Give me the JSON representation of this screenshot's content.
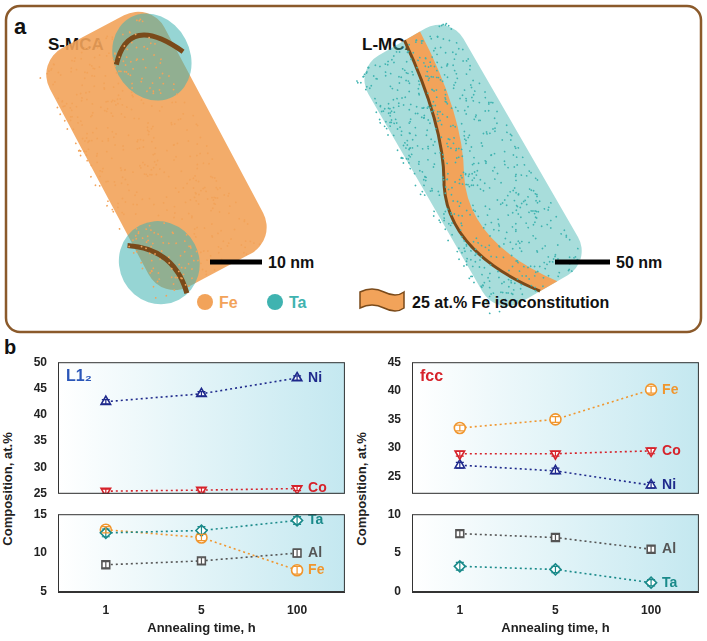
{
  "panel_a": {
    "panel_label": "a",
    "samples": [
      "S-MCA",
      "L-MCA"
    ],
    "scale_bars": [
      "10 nm",
      "50 nm"
    ],
    "key_items": [
      {
        "name": "Fe",
        "color": "#f2a35a"
      },
      {
        "name": "Ta",
        "color": "#3fb3b0"
      }
    ],
    "isosurface_label": "25 at.% Fe isoconstitution"
  },
  "panel_b": {
    "panel_label": "b"
  },
  "chart_data": [
    {
      "type": "line",
      "title": "L1₂",
      "categories": [
        "1",
        "5",
        "100"
      ],
      "ylim": [
        25,
        50
      ],
      "yticks": [
        25,
        30,
        35,
        40,
        45,
        50
      ],
      "tick_labels": "y",
      "grid": false,
      "line_style": "dotted",
      "series": [
        {
          "name": "Ni",
          "color": "#1f2a8c",
          "marker": "triangle",
          "values": [
            42.5,
            44.0,
            47.0
          ],
          "errors": [
            0.4,
            0.4,
            0.4
          ]
        },
        {
          "name": "Co",
          "color": "#d6232b",
          "marker": "triangle_down",
          "values": [
            25.5,
            25.7,
            26.0
          ],
          "errors": [
            0.4,
            0.4,
            0.4
          ]
        }
      ]
    },
    {
      "type": "line",
      "categories": [
        "1",
        "5",
        "100"
      ],
      "ylim": [
        5,
        15
      ],
      "yticks": [
        5,
        10,
        15
      ],
      "xlabel": "Annealing time, h",
      "ylabel": "Composition, at.%",
      "grid": false,
      "line_style": "dotted",
      "series": [
        {
          "name": "Ta",
          "color": "#1a8a8a",
          "marker": "diamond",
          "values": [
            12.6,
            12.9,
            14.2
          ],
          "errors": [
            0.5,
            0.5,
            0.5
          ]
        },
        {
          "name": "Al",
          "color": "#555555",
          "marker": "square",
          "values": [
            8.5,
            9.0,
            10.0
          ],
          "errors": [
            0.4,
            0.4,
            0.5
          ]
        },
        {
          "name": "Fe",
          "color": "#f0962e",
          "marker": "circle",
          "values": [
            13.0,
            12.0,
            7.8
          ],
          "errors": [
            0.4,
            0.4,
            0.5
          ]
        }
      ]
    },
    {
      "type": "line",
      "title": "fcc",
      "categories": [
        "1",
        "5",
        "100"
      ],
      "ylim": [
        22,
        45
      ],
      "yticks": [
        25,
        30,
        35,
        40,
        45
      ],
      "tick_labels": "y",
      "grid": false,
      "line_style": "dotted",
      "series": [
        {
          "name": "Fe",
          "color": "#f0962e",
          "marker": "circle",
          "values": [
            33.5,
            35.0,
            40.2
          ],
          "errors": [
            0.5,
            0.5,
            0.6
          ]
        },
        {
          "name": "Co",
          "color": "#d6232b",
          "marker": "triangle_down",
          "values": [
            29.0,
            29.0,
            29.5
          ],
          "errors": [
            0.4,
            0.4,
            0.5
          ]
        },
        {
          "name": "Ni",
          "color": "#1f2a8c",
          "marker": "triangle",
          "values": [
            27.0,
            26.0,
            23.5
          ],
          "errors": [
            0.5,
            0.5,
            0.5
          ]
        }
      ]
    },
    {
      "type": "line",
      "categories": [
        "1",
        "5",
        "100"
      ],
      "ylim": [
        0,
        10
      ],
      "yticks": [
        0,
        5,
        10
      ],
      "xlabel": "Annealing time, h",
      "ylabel": "Composition, at.%",
      "grid": false,
      "line_style": "dotted",
      "series": [
        {
          "name": "Al",
          "color": "#555555",
          "marker": "square",
          "values": [
            7.5,
            7.0,
            5.5
          ],
          "errors": [
            0.4,
            0.4,
            0.4
          ]
        },
        {
          "name": "Ta",
          "color": "#1a8a8a",
          "marker": "diamond",
          "values": [
            3.3,
            2.9,
            1.2
          ],
          "errors": [
            0.5,
            0.4,
            0.4
          ]
        }
      ]
    }
  ]
}
